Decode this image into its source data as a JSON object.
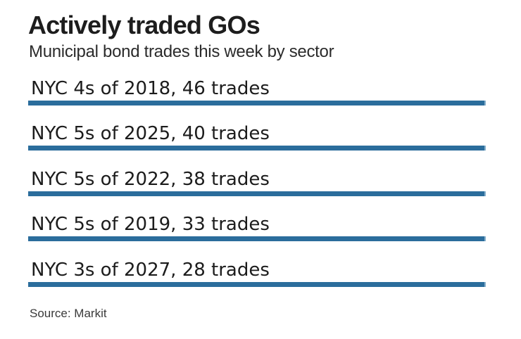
{
  "header": {
    "title": "Actively traded GOs",
    "subtitle": "Municipal bond trades this week by sector"
  },
  "source": "Source: Markit",
  "colors": {
    "bar": "#2b6d9c",
    "title_text": "#1d1d1d",
    "body_text": "#1c1c1c",
    "background": "#ffffff"
  },
  "chart_data": {
    "type": "bar",
    "orientation": "horizontal",
    "title": "Actively traded GOs",
    "subtitle": "Municipal bond trades this week by sector",
    "source": "Source: Markit",
    "categories": [
      "NYC 4s of 2018",
      "NYC 5s of 2025",
      "NYC 5s of 2022",
      "NYC 5s of 2019",
      "NYC 3s of 2027"
    ],
    "values": [
      46,
      40,
      38,
      33,
      28
    ],
    "value_unit": "trades",
    "labels": [
      "NYC 4s of 2018, 46 trades",
      "NYC 5s of 2025, 40 trades",
      "NYC 5s of 2022, 38 trades",
      "NYC 5s of 2019, 33 trades",
      "NYC 3s of 2027, 28 trades"
    ],
    "bar_color": "#2b6d9c",
    "grid": false,
    "legend": false,
    "axes_shown": false,
    "bars_rendered_equal_length": true
  }
}
